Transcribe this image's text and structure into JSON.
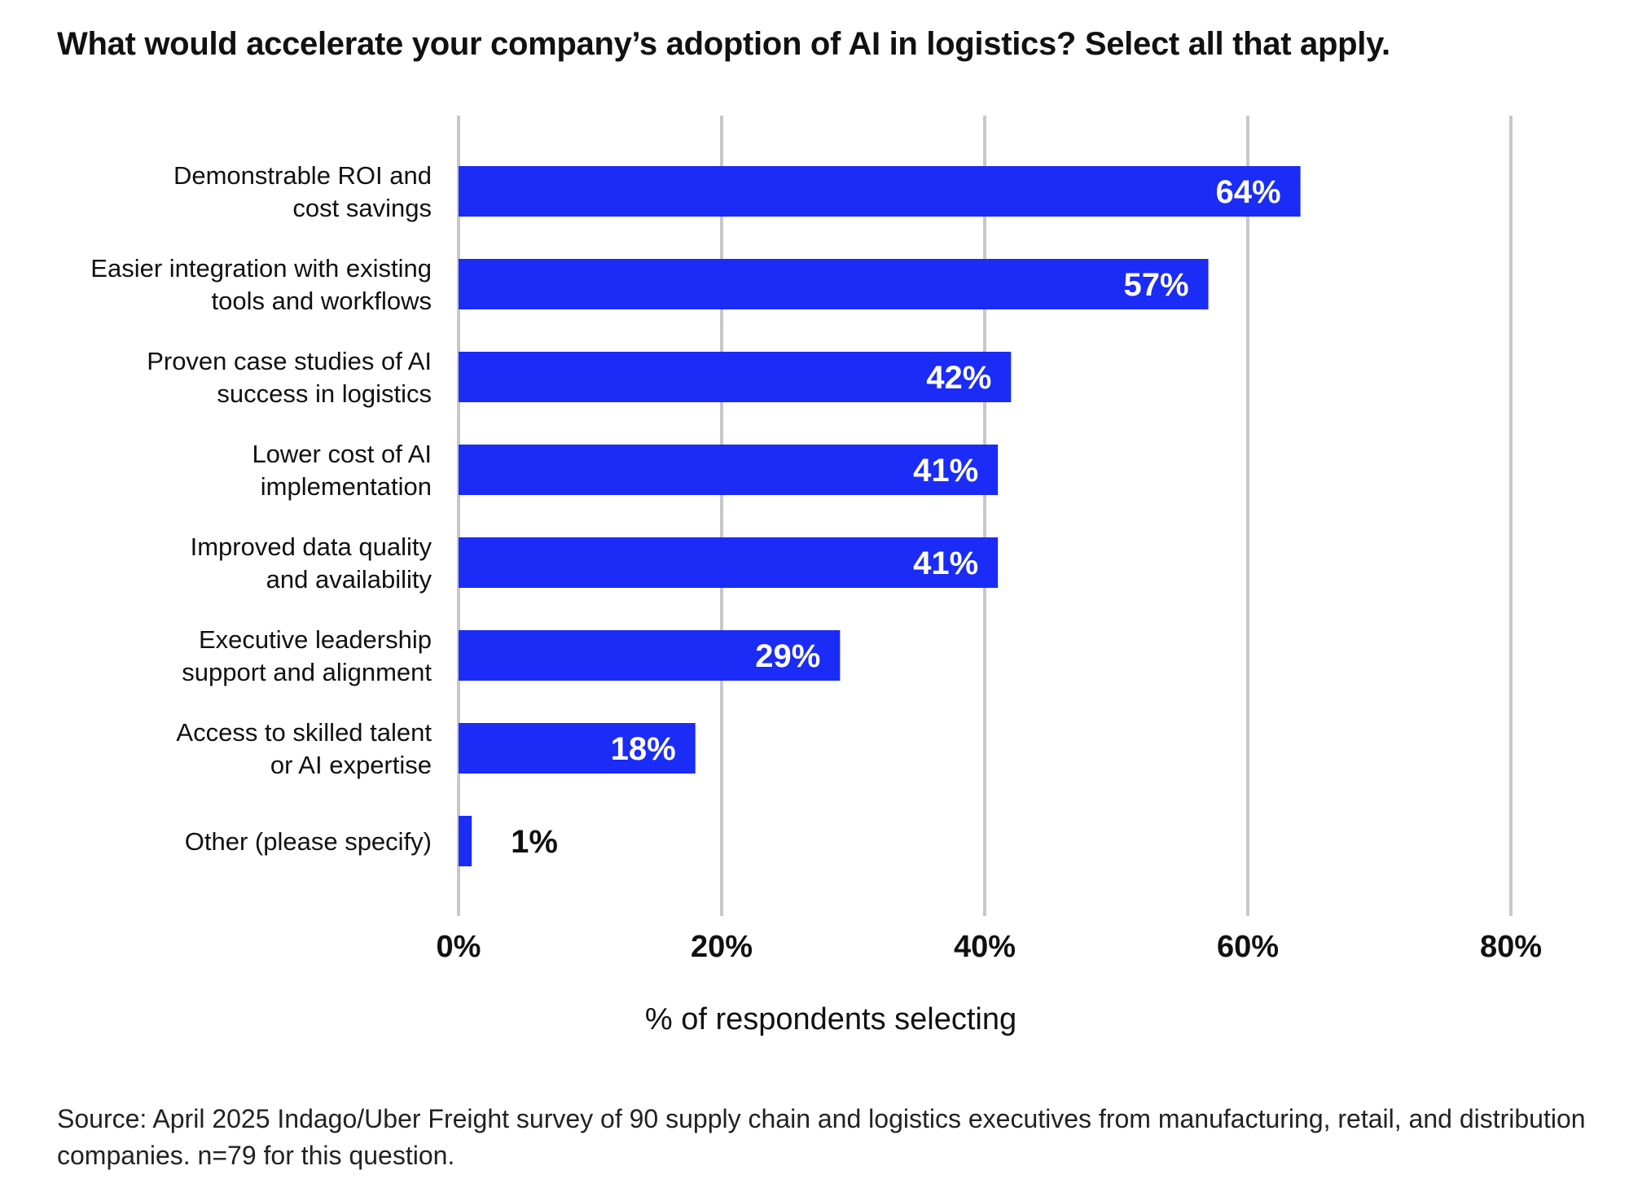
{
  "title": "What would accelerate your company’s adoption of AI in logistics? Select all that apply.",
  "source": "Source: April 2025 Indago/Uber Freight survey of 90 supply chain and logistics executives from manufacturing, retail, and distribution companies. n=79 for this question.",
  "colors": {
    "bar": "#1a2cf5",
    "grid": "#c8c8c8",
    "bar_label_inside": "#ffffff",
    "bar_label_outside": "#111111"
  },
  "chart_data": {
    "type": "bar",
    "orientation": "horizontal",
    "title": "What would accelerate your company’s adoption of AI in logistics? Select all that apply.",
    "xlabel": "% of respondents selecting",
    "ylabel": "",
    "xlim": [
      0,
      80
    ],
    "ticks": [
      0,
      20,
      40,
      60,
      80
    ],
    "tick_labels": [
      "0%",
      "20%",
      "40%",
      "60%",
      "80%"
    ],
    "grid": "vertical",
    "categories": [
      [
        "Demonstrable ROI and",
        "cost savings"
      ],
      [
        "Easier integration with existing",
        "tools and workflows"
      ],
      [
        "Proven case studies of AI",
        "success in logistics"
      ],
      [
        "Lower cost of AI",
        "implementation"
      ],
      [
        "Improved data quality",
        "and availability"
      ],
      [
        "Executive leadership",
        "support and alignment"
      ],
      [
        "Access to skilled talent",
        "or AI expertise"
      ],
      [
        "Other (please specify)"
      ]
    ],
    "values": [
      64,
      57,
      42,
      41,
      41,
      29,
      18,
      1
    ],
    "value_labels": [
      "64%",
      "57%",
      "42%",
      "41%",
      "41%",
      "29%",
      "18%",
      "1%"
    ]
  }
}
